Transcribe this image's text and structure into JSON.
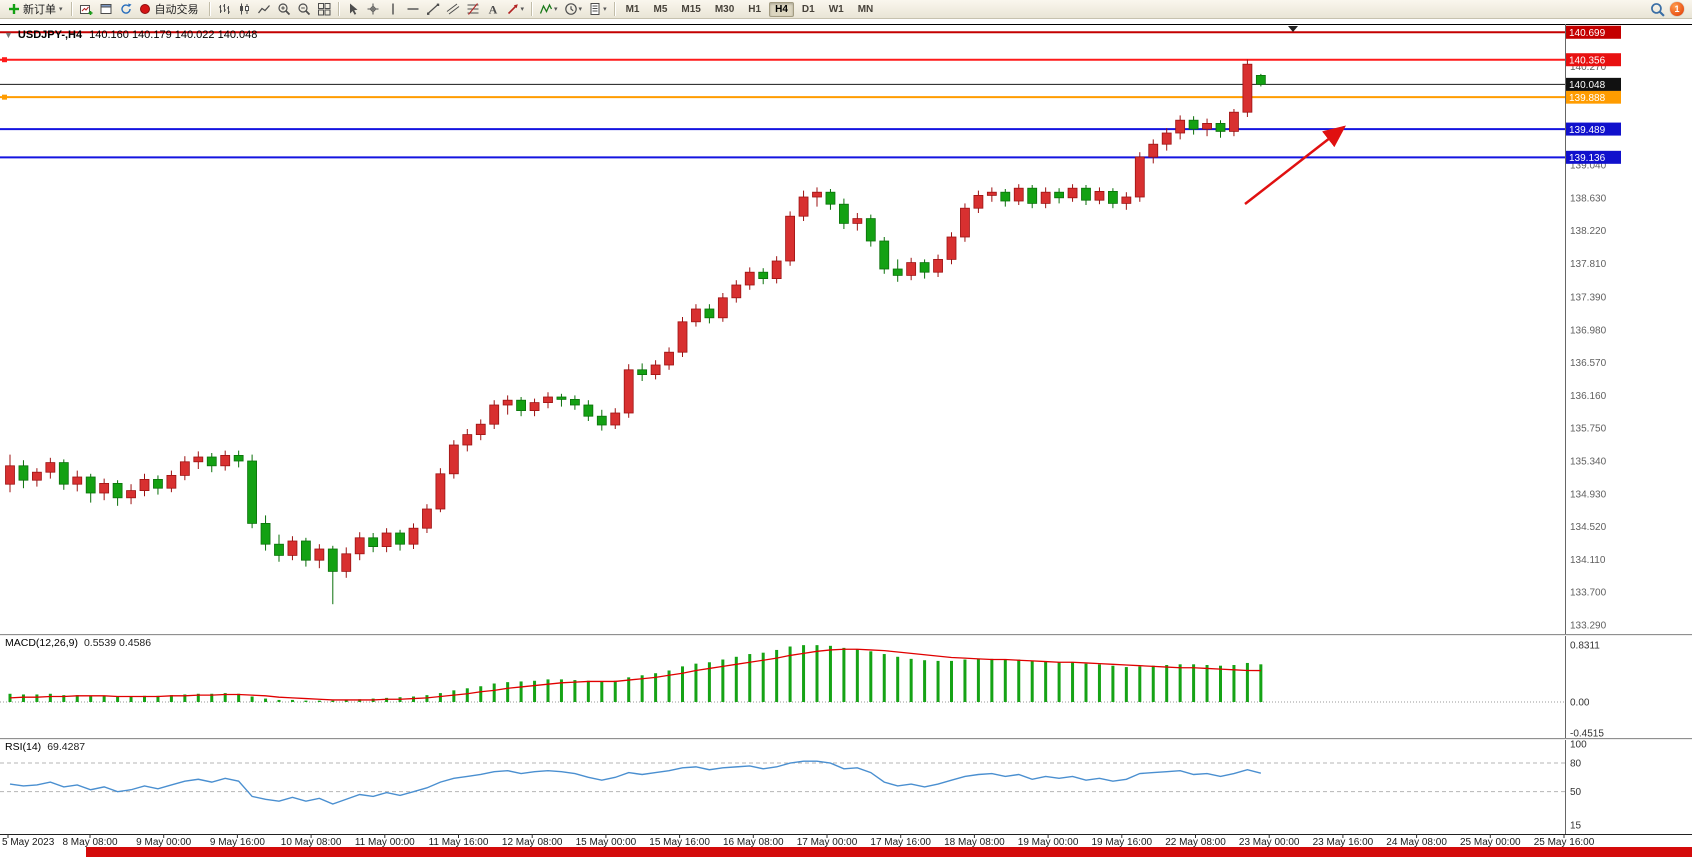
{
  "toolbar": {
    "new_order": "新订单",
    "auto_trading": "自动交易",
    "timeframes": [
      "M1",
      "M5",
      "M15",
      "M30",
      "H1",
      "H4",
      "D1",
      "W1",
      "MN"
    ],
    "active_timeframe": "H4",
    "notification_count": "1",
    "icon_groups": [
      [
        "new-chart",
        "chart-window",
        "refresh"
      ],
      [
        "bar-chart",
        "candlestick-chart",
        "line-chart",
        "zoom-in",
        "zoom-out",
        "tile-windows"
      ],
      [
        "cursor",
        "crosshair",
        "vertical-line",
        "horizontal-line",
        "trendline",
        "channel",
        "fibonacci",
        "text",
        "arrow-tools"
      ],
      [
        "indicators",
        "periods",
        "templates"
      ]
    ],
    "dropdown_buttons": [
      "arrow-tools",
      "indicators",
      "periods",
      "templates"
    ]
  },
  "chart": {
    "collapse_icon": "▼",
    "symbol_title": "USDJPY-,H4",
    "ohlc_text": "140.160 140.179 140.022 140.048",
    "axis_labels": [
      "140.270",
      "139.040",
      "138.630",
      "138.220",
      "137.810",
      "137.390",
      "136.980",
      "136.570",
      "136.160",
      "135.750",
      "135.340",
      "134.930",
      "134.520",
      "134.110",
      "133.700",
      "133.290"
    ],
    "price_lines": [
      {
        "label": "140.699",
        "price": 140.699,
        "color": "#c40000",
        "badge": "#c40000",
        "width": 2,
        "handle": false
      },
      {
        "label": "140.356",
        "price": 140.356,
        "color": "#ff1a1a",
        "badge": "#e81010",
        "width": 2,
        "handle": true
      },
      {
        "label": "139.888",
        "price": 139.888,
        "color": "#ff9c00",
        "badge": "#ff9c00",
        "width": 2,
        "handle": true
      },
      {
        "label": "139.489",
        "price": 139.489,
        "color": "#1414e0",
        "badge": "#1111cc",
        "width": 2,
        "handle": false
      },
      {
        "label": "139.136",
        "price": 139.136,
        "color": "#1414e0",
        "badge": "#1111cc",
        "width": 2,
        "handle": false
      }
    ],
    "current_price": {
      "label": "140.048",
      "price": 140.048,
      "color": "#1a1a1a",
      "badge": "#111111"
    },
    "arrow": {
      "color": "#e01010"
    }
  },
  "chart_data": {
    "type": "candlestick",
    "symbol": "USDJPY",
    "timeframe": "H4",
    "up_color": "#d83030",
    "down_color": "#13a113",
    "price_axis": {
      "min": 133.29,
      "max": 140.7
    },
    "current_ohlc": {
      "open": "140.160",
      "high": "140.179",
      "low": "140.022",
      "close": "140.048"
    },
    "candles": [
      [
        135.05,
        135.42,
        134.95,
        135.28
      ],
      [
        135.28,
        135.35,
        135.0,
        135.1
      ],
      [
        135.1,
        135.25,
        135.02,
        135.2
      ],
      [
        135.2,
        135.38,
        135.12,
        135.32
      ],
      [
        135.32,
        135.36,
        134.98,
        135.05
      ],
      [
        135.05,
        135.22,
        134.96,
        135.14
      ],
      [
        135.14,
        135.18,
        134.82,
        134.94
      ],
      [
        134.94,
        135.12,
        134.85,
        135.06
      ],
      [
        135.06,
        135.1,
        134.78,
        134.88
      ],
      [
        134.88,
        135.05,
        134.8,
        134.97
      ],
      [
        134.97,
        135.18,
        134.9,
        135.11
      ],
      [
        135.11,
        135.16,
        134.92,
        135.0
      ],
      [
        135.0,
        135.22,
        134.95,
        135.16
      ],
      [
        135.16,
        135.4,
        135.1,
        135.33
      ],
      [
        135.33,
        135.46,
        135.24,
        135.39
      ],
      [
        135.39,
        135.44,
        135.2,
        135.28
      ],
      [
        135.28,
        135.47,
        135.22,
        135.41
      ],
      [
        135.41,
        135.47,
        135.26,
        135.34
      ],
      [
        135.34,
        135.42,
        134.5,
        134.56
      ],
      [
        134.56,
        134.66,
        134.22,
        134.3
      ],
      [
        134.3,
        134.42,
        134.08,
        134.16
      ],
      [
        134.16,
        134.4,
        134.1,
        134.34
      ],
      [
        134.34,
        134.38,
        134.02,
        134.1
      ],
      [
        134.1,
        134.3,
        134.0,
        134.24
      ],
      [
        134.24,
        134.28,
        133.55,
        133.96
      ],
      [
        133.96,
        134.26,
        133.88,
        134.18
      ],
      [
        134.18,
        134.45,
        134.1,
        134.38
      ],
      [
        134.38,
        134.44,
        134.2,
        134.27
      ],
      [
        134.27,
        134.5,
        134.2,
        134.44
      ],
      [
        134.44,
        134.48,
        134.22,
        134.3
      ],
      [
        134.3,
        134.56,
        134.24,
        134.5
      ],
      [
        134.5,
        134.8,
        134.44,
        134.74
      ],
      [
        134.74,
        135.25,
        134.7,
        135.18
      ],
      [
        135.18,
        135.6,
        135.12,
        135.54
      ],
      [
        135.54,
        135.74,
        135.46,
        135.67
      ],
      [
        135.67,
        135.86,
        135.6,
        135.8
      ],
      [
        135.8,
        136.1,
        135.74,
        136.04
      ],
      [
        136.04,
        136.16,
        135.92,
        136.1
      ],
      [
        136.1,
        136.14,
        135.9,
        135.97
      ],
      [
        135.97,
        136.12,
        135.9,
        136.07
      ],
      [
        136.07,
        136.2,
        136.0,
        136.14
      ],
      [
        136.14,
        136.18,
        136.02,
        136.11
      ],
      [
        136.11,
        136.16,
        135.98,
        136.04
      ],
      [
        136.04,
        136.1,
        135.84,
        135.9
      ],
      [
        135.9,
        135.98,
        135.72,
        135.79
      ],
      [
        135.79,
        136.0,
        135.74,
        135.94
      ],
      [
        135.94,
        136.55,
        135.88,
        136.48
      ],
      [
        136.48,
        136.56,
        136.34,
        136.42
      ],
      [
        136.42,
        136.6,
        136.36,
        136.54
      ],
      [
        136.54,
        136.76,
        136.48,
        136.7
      ],
      [
        136.7,
        137.14,
        136.64,
        137.08
      ],
      [
        137.08,
        137.3,
        137.02,
        137.24
      ],
      [
        137.24,
        137.3,
        137.06,
        137.13
      ],
      [
        137.13,
        137.44,
        137.08,
        137.38
      ],
      [
        137.38,
        137.6,
        137.32,
        137.54
      ],
      [
        137.54,
        137.76,
        137.48,
        137.7
      ],
      [
        137.7,
        137.75,
        137.55,
        137.62
      ],
      [
        137.62,
        137.9,
        137.56,
        137.84
      ],
      [
        137.84,
        138.46,
        137.78,
        138.4
      ],
      [
        138.4,
        138.72,
        138.34,
        138.64
      ],
      [
        138.64,
        138.76,
        138.52,
        138.7
      ],
      [
        138.7,
        138.74,
        138.48,
        138.55
      ],
      [
        138.55,
        138.62,
        138.24,
        138.31
      ],
      [
        138.31,
        138.44,
        138.22,
        138.37
      ],
      [
        138.37,
        138.42,
        138.02,
        138.09
      ],
      [
        138.09,
        138.14,
        137.68,
        137.74
      ],
      [
        137.74,
        137.86,
        137.58,
        137.66
      ],
      [
        137.66,
        137.88,
        137.6,
        137.82
      ],
      [
        137.82,
        137.86,
        137.62,
        137.7
      ],
      [
        137.7,
        137.92,
        137.64,
        137.86
      ],
      [
        137.86,
        138.2,
        137.8,
        138.14
      ],
      [
        138.14,
        138.56,
        138.08,
        138.5
      ],
      [
        138.5,
        138.72,
        138.44,
        138.66
      ],
      [
        138.66,
        138.76,
        138.58,
        138.7
      ],
      [
        138.7,
        138.74,
        138.52,
        138.59
      ],
      [
        138.59,
        138.8,
        138.54,
        138.75
      ],
      [
        138.75,
        138.79,
        138.5,
        138.56
      ],
      [
        138.56,
        138.76,
        138.5,
        138.7
      ],
      [
        138.7,
        138.75,
        138.56,
        138.63
      ],
      [
        138.63,
        138.8,
        138.58,
        138.75
      ],
      [
        138.75,
        138.79,
        138.54,
        138.6
      ],
      [
        138.6,
        138.76,
        138.55,
        138.71
      ],
      [
        138.71,
        138.75,
        138.5,
        138.56
      ],
      [
        138.56,
        138.7,
        138.48,
        138.64
      ],
      [
        138.64,
        139.2,
        138.58,
        139.14
      ],
      [
        139.14,
        139.36,
        139.06,
        139.3
      ],
      [
        139.3,
        139.5,
        139.22,
        139.44
      ],
      [
        139.44,
        139.66,
        139.36,
        139.6
      ],
      [
        139.6,
        139.65,
        139.42,
        139.49
      ],
      [
        139.49,
        139.62,
        139.4,
        139.56
      ],
      [
        139.56,
        139.6,
        139.38,
        139.46
      ],
      [
        139.46,
        139.74,
        139.4,
        139.7
      ],
      [
        139.7,
        140.36,
        139.64,
        140.3
      ],
      [
        140.16,
        140.179,
        140.022,
        140.048
      ]
    ],
    "indicators": [
      {
        "name": "MACD",
        "label": "MACD(12,26,9)",
        "values_text": "0.5539 0.4586",
        "axis_labels": [
          "0.8311",
          "0.00",
          "-0.4515"
        ],
        "hist_color": "#15a315",
        "signal_color": "#e00000",
        "histogram": [
          0.12,
          0.11,
          0.11,
          0.12,
          0.1,
          0.1,
          0.09,
          0.09,
          0.08,
          0.08,
          0.09,
          0.09,
          0.1,
          0.11,
          0.12,
          0.12,
          0.13,
          0.12,
          0.08,
          0.05,
          0.03,
          0.03,
          0.02,
          0.02,
          0.02,
          0.03,
          0.04,
          0.05,
          0.06,
          0.07,
          0.08,
          0.1,
          0.13,
          0.17,
          0.2,
          0.23,
          0.27,
          0.29,
          0.3,
          0.31,
          0.33,
          0.33,
          0.32,
          0.31,
          0.3,
          0.31,
          0.36,
          0.39,
          0.42,
          0.46,
          0.52,
          0.56,
          0.58,
          0.62,
          0.66,
          0.7,
          0.72,
          0.76,
          0.81,
          0.83,
          0.83,
          0.82,
          0.79,
          0.77,
          0.74,
          0.7,
          0.66,
          0.63,
          0.61,
          0.6,
          0.6,
          0.62,
          0.63,
          0.63,
          0.62,
          0.62,
          0.6,
          0.59,
          0.58,
          0.58,
          0.56,
          0.55,
          0.53,
          0.51,
          0.52,
          0.53,
          0.54,
          0.55,
          0.55,
          0.54,
          0.53,
          0.54,
          0.57,
          0.55
        ],
        "signal": [
          0.06,
          0.07,
          0.07,
          0.08,
          0.08,
          0.09,
          0.09,
          0.09,
          0.08,
          0.08,
          0.08,
          0.08,
          0.09,
          0.09,
          0.1,
          0.1,
          0.11,
          0.11,
          0.1,
          0.09,
          0.07,
          0.06,
          0.05,
          0.04,
          0.03,
          0.03,
          0.03,
          0.03,
          0.04,
          0.04,
          0.05,
          0.06,
          0.08,
          0.1,
          0.12,
          0.15,
          0.17,
          0.2,
          0.22,
          0.24,
          0.26,
          0.28,
          0.29,
          0.3,
          0.3,
          0.3,
          0.32,
          0.34,
          0.36,
          0.39,
          0.42,
          0.46,
          0.49,
          0.52,
          0.55,
          0.58,
          0.61,
          0.64,
          0.68,
          0.71,
          0.74,
          0.76,
          0.77,
          0.77,
          0.76,
          0.75,
          0.73,
          0.71,
          0.69,
          0.67,
          0.65,
          0.64,
          0.63,
          0.62,
          0.62,
          0.61,
          0.6,
          0.59,
          0.58,
          0.58,
          0.57,
          0.56,
          0.55,
          0.54,
          0.53,
          0.52,
          0.51,
          0.5,
          0.5,
          0.49,
          0.48,
          0.47,
          0.46,
          0.459
        ]
      },
      {
        "name": "RSI",
        "label": "RSI(14)",
        "values_text": "69.4287",
        "axis_labels": [
          "100",
          "80",
          "50",
          "15"
        ],
        "levels": [
          80,
          50
        ],
        "color": "#4a8fd0",
        "series": [
          58,
          56,
          57,
          60,
          55,
          57,
          52,
          55,
          50,
          52,
          56,
          53,
          57,
          61,
          63,
          60,
          64,
          61,
          45,
          42,
          40,
          44,
          40,
          43,
          37,
          42,
          47,
          45,
          49,
          46,
          50,
          54,
          60,
          64,
          66,
          68,
          71,
          72,
          69,
          71,
          72,
          71,
          69,
          65,
          62,
          65,
          70,
          68,
          70,
          72,
          75,
          76,
          73,
          75,
          76,
          77,
          74,
          76,
          80,
          82,
          82,
          80,
          74,
          75,
          70,
          60,
          56,
          58,
          55,
          58,
          62,
          66,
          68,
          69,
          66,
          68,
          63,
          66,
          64,
          66,
          62,
          64,
          61,
          63,
          69,
          70,
          71,
          72,
          68,
          69,
          66,
          69,
          73,
          69.4
        ]
      }
    ],
    "time_labels": [
      "5 May 2023",
      "8 May 08:00",
      "9 May 00:00",
      "9 May 16:00",
      "10 May 08:00",
      "11 May 00:00",
      "11 May 16:00",
      "12 May 08:00",
      "15 May 00:00",
      "15 May 16:00",
      "16 May 08:00",
      "17 May 00:00",
      "17 May 16:00",
      "18 May 08:00",
      "19 May 00:00",
      "19 May 16:00",
      "22 May 08:00",
      "23 May 00:00",
      "23 May 16:00",
      "24 May 08:00",
      "25 May 00:00",
      "25 May 16:00"
    ]
  },
  "footer": {
    "bar_color": "#d40b0b"
  }
}
